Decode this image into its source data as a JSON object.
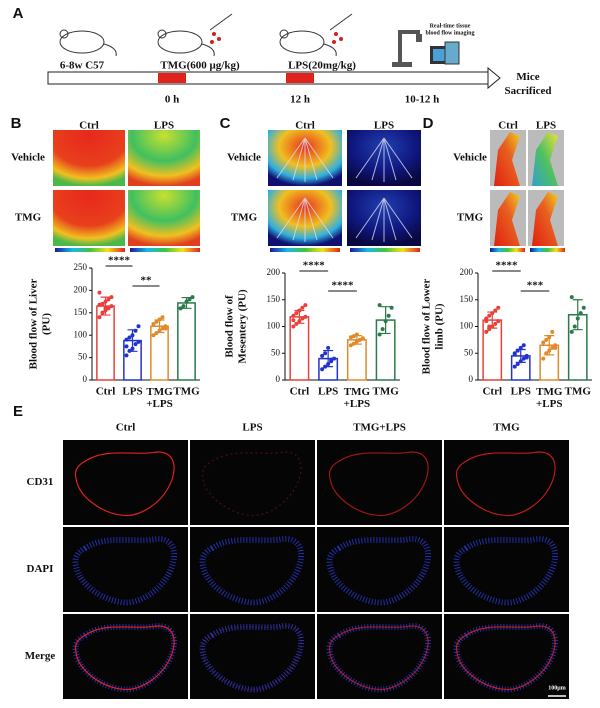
{
  "panel_a": {
    "label": "A",
    "strain": "6-8w C57",
    "tmg_dose": "TMG(600 μg/kg)",
    "lps_dose": "LPS(20mg/kg)",
    "imaging": "Real-time tissue\nblood flow imaging",
    "t0": "0 h",
    "t12": "12 h",
    "t_end": "10-12 h",
    "end": "Mice\nSacrificed"
  },
  "panel_b": {
    "label": "B",
    "columns": [
      "Ctrl",
      "LPS"
    ],
    "rows": [
      "Vehicle",
      "TMG"
    ]
  },
  "panel_c": {
    "label": "C",
    "columns": [
      "Ctrl",
      "LPS"
    ],
    "rows": [
      "Vehicle",
      "TMG"
    ]
  },
  "panel_d": {
    "label": "D",
    "columns": [
      "Ctrl",
      "LPS"
    ],
    "rows": [
      "Vehicle",
      "TMG"
    ]
  },
  "panel_e": {
    "label": "E",
    "columns": [
      "Ctrl",
      "LPS",
      "TMG+LPS",
      "TMG"
    ],
    "rows": [
      "CD31",
      "DAPI",
      "Merge"
    ],
    "scale_bar": "100μm"
  },
  "chart_data": [
    {
      "type": "bar",
      "ylabel": "Blood flow of Liver\n(PU)",
      "categories": [
        "Ctrl",
        "LPS",
        "TMG\n+LPS",
        "TMG"
      ],
      "colors": [
        "#e8413c",
        "#2233cc",
        "#e08a2a",
        "#2a7a4a"
      ],
      "values": [
        165,
        88,
        120,
        172
      ],
      "errors": [
        20,
        24,
        14,
        12
      ],
      "points": [
        [
          140,
          150,
          155,
          160,
          165,
          168,
          170,
          175,
          180,
          185,
          195,
          150,
          160
        ],
        [
          55,
          65,
          70,
          80,
          85,
          90,
          95,
          100,
          110,
          120,
          75
        ],
        [
          100,
          105,
          110,
          115,
          120,
          125,
          130,
          135,
          140,
          115
        ],
        [
          160,
          165,
          175,
          180,
          185
        ]
      ],
      "ylim": [
        0,
        250
      ],
      "yticks": [
        0,
        50,
        100,
        150,
        200,
        250
      ],
      "significance": [
        {
          "from": 0,
          "to": 1,
          "label": "****"
        },
        {
          "from": 1,
          "to": 2,
          "label": "**"
        }
      ]
    },
    {
      "type": "bar",
      "ylabel": "Blood flow of\nMesentery (PU)",
      "categories": [
        "Ctrl",
        "LPS",
        "TMG\n+LPS",
        "TMG"
      ],
      "colors": [
        "#e8413c",
        "#2233cc",
        "#e08a2a",
        "#2a7a4a"
      ],
      "values": [
        118,
        40,
        75,
        112
      ],
      "errors": [
        12,
        15,
        8,
        25
      ],
      "points": [
        [
          100,
          105,
          110,
          115,
          118,
          120,
          125,
          130,
          135,
          140,
          112
        ],
        [
          20,
          25,
          30,
          35,
          40,
          45,
          50,
          60,
          38
        ],
        [
          65,
          68,
          72,
          75,
          78,
          80,
          82,
          85
        ],
        [
          85,
          95,
          110,
          120,
          135,
          140
        ]
      ],
      "ylim": [
        0,
        200
      ],
      "yticks": [
        0,
        50,
        100,
        150,
        200
      ],
      "significance": [
        {
          "from": 0,
          "to": 1,
          "label": "****"
        },
        {
          "from": 1,
          "to": 2,
          "label": "****"
        }
      ]
    },
    {
      "type": "bar",
      "ylabel": "Blood flow of Lower\nlimb (PU)",
      "categories": [
        "Ctrl",
        "LPS",
        "TMG\n+LPS",
        "TMG"
      ],
      "colors": [
        "#e8413c",
        "#2233cc",
        "#e08a2a",
        "#2a7a4a"
      ],
      "values": [
        112,
        45,
        65,
        122
      ],
      "errors": [
        15,
        12,
        18,
        28
      ],
      "points": [
        [
          90,
          95,
          100,
          105,
          110,
          115,
          120,
          125,
          130,
          135,
          110,
          100
        ],
        [
          25,
          30,
          35,
          40,
          45,
          50,
          55,
          60,
          65,
          42,
          48
        ],
        [
          40,
          50,
          55,
          60,
          65,
          70,
          75,
          80,
          90,
          60
        ],
        [
          90,
          100,
          115,
          125,
          135,
          155
        ]
      ],
      "ylim": [
        0,
        200
      ],
      "yticks": [
        0,
        50,
        100,
        150,
        200
      ],
      "significance": [
        {
          "from": 0,
          "to": 1,
          "label": "****"
        },
        {
          "from": 1,
          "to": 2,
          "label": "***"
        }
      ]
    }
  ]
}
